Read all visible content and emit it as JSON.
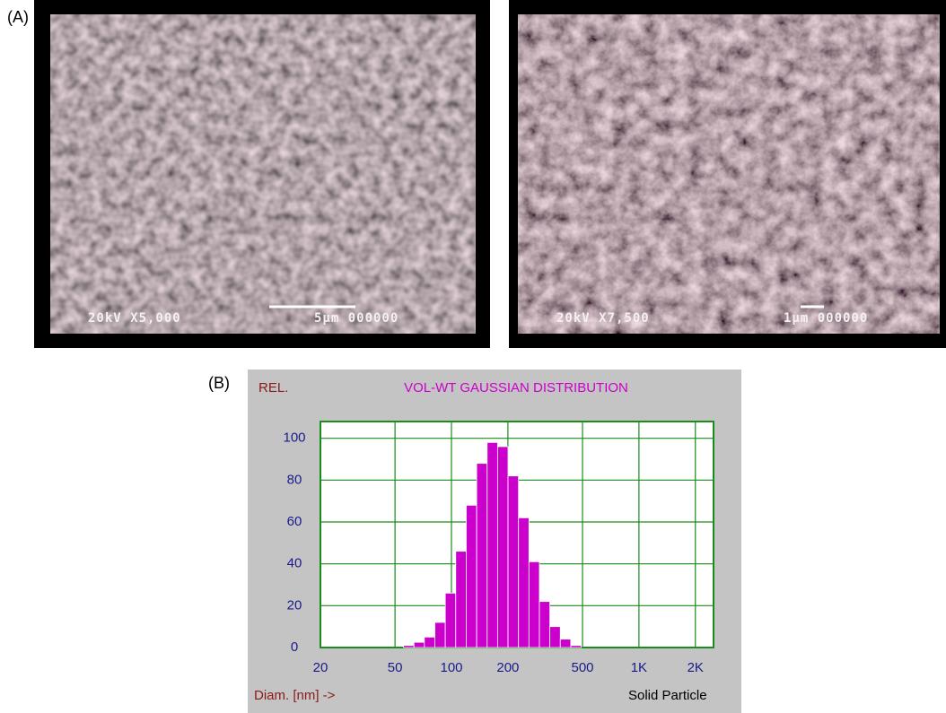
{
  "panel_labels": [
    "(A)",
    "(B)"
  ],
  "images": [
    {
      "annotations": [
        "20kV X5,000",
        "5μm 000000"
      ]
    },
    {
      "annotations": [
        "20kV X7,500",
        "1μm 000000"
      ]
    }
  ],
  "chart_data": {
    "type": "histogram",
    "title": "VOL-WT GAUSSIAN DISTRIBUTION",
    "y_label": "REL.",
    "x_label": "Diam. [nm] ->",
    "annotation": "Solid Particle",
    "bins": [
      55.5,
      63.1,
      71.7,
      81.6,
      92.7,
      105.4,
      119.9,
      136.3,
      155,
      176.2,
      200.3,
      227.8,
      259,
      294.5,
      334.8,
      380.7,
      432.8,
      492.1
    ],
    "values": [
      1,
      2.5,
      5,
      12,
      26,
      46,
      68,
      88,
      98,
      96,
      82,
      62,
      41,
      22,
      10,
      4,
      1
    ],
    "color": "#cc00cc",
    "xscale": "log",
    "xlim": [
      20,
      2500
    ],
    "xticks": [
      20,
      50,
      100,
      200,
      500,
      {
        "value": 1000,
        "label": "1K"
      },
      {
        "value": 2000,
        "label": "2K"
      }
    ],
    "ylim": [
      0,
      108
    ],
    "yticks": [
      0,
      20,
      40,
      60,
      80,
      100
    ],
    "grid": true,
    "grid_color": "#1a8c1a"
  }
}
